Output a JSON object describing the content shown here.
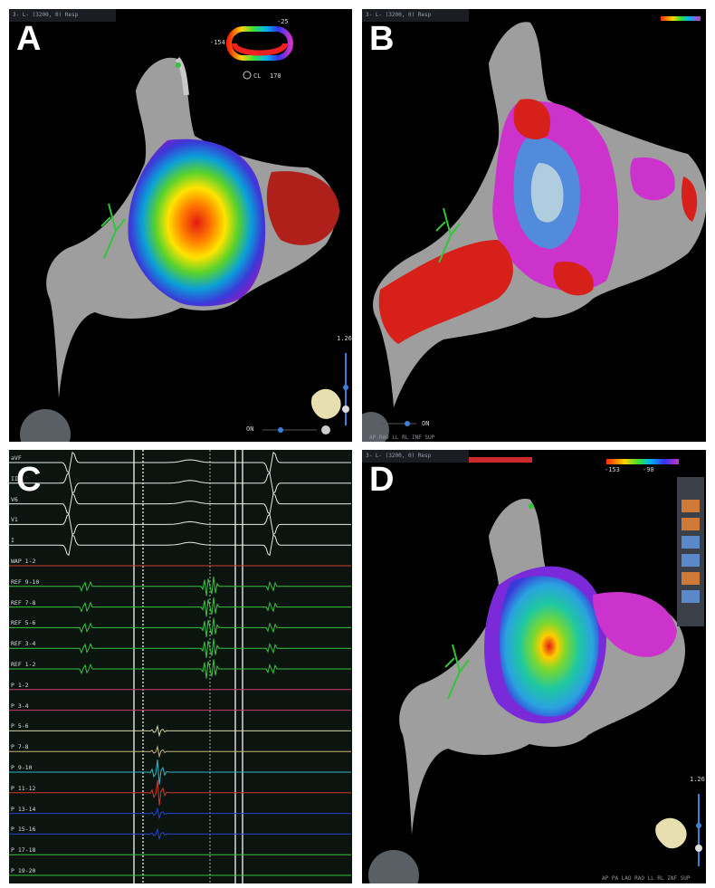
{
  "panels": [
    {
      "letter": "A",
      "header": "3- L- (3200, 0) Resp",
      "legend": {
        "top": "-25",
        "left": "-154",
        "cl_label": "CL",
        "cl_value": "170"
      },
      "scale": "1.26",
      "zoom_label": "ON"
    },
    {
      "letter": "B",
      "header": "3- L- (3200, 0) Resp",
      "zoom_label": "ON",
      "nav_labels": "AP  RAO  LL  RL  INF  SUP"
    },
    {
      "letter": "C"
    },
    {
      "letter": "D",
      "header": "3- L- (3200, 0) Resp",
      "legend": {
        "left": "-153",
        "right": "-90"
      },
      "scale": "1.26",
      "nav_labels": "AP  PA  LAO  RAO  LL  RL  INF  SUP"
    }
  ],
  "traces": [
    {
      "label": "aVF",
      "color": "#e8e8e8"
    },
    {
      "label": "II",
      "color": "#e8e8e8"
    },
    {
      "label": "V6",
      "color": "#e8e8e8"
    },
    {
      "label": "V1",
      "color": "#e8e8e8"
    },
    {
      "label": "I",
      "color": "#e8e8e8"
    },
    {
      "label": "WAP 1-2",
      "color": "#d0402c"
    },
    {
      "label": "REF 9-10",
      "color": "#34c43a"
    },
    {
      "label": "REF 7-8",
      "color": "#34c43a"
    },
    {
      "label": "REF 5-6",
      "color": "#34c43a"
    },
    {
      "label": "REF 3-4",
      "color": "#34c43a"
    },
    {
      "label": "REF 1-2",
      "color": "#34c43a"
    },
    {
      "label": "P 1-2",
      "color": "#c9396f"
    },
    {
      "label": "P 3-4",
      "color": "#c9396f"
    },
    {
      "label": "P 5-6",
      "color": "#d4d4a8"
    },
    {
      "label": "P 7-8",
      "color": "#c9b277"
    },
    {
      "label": "P 9-10",
      "color": "#2fb5c7"
    },
    {
      "label": "P 11-12",
      "color": "#d03628"
    },
    {
      "label": "P 13-14",
      "color": "#2244cc"
    },
    {
      "label": "P 15-16",
      "color": "#2244cc"
    },
    {
      "label": "P 17-18",
      "color": "#34c43a"
    },
    {
      "label": "P 19-20",
      "color": "#34c43a"
    }
  ]
}
